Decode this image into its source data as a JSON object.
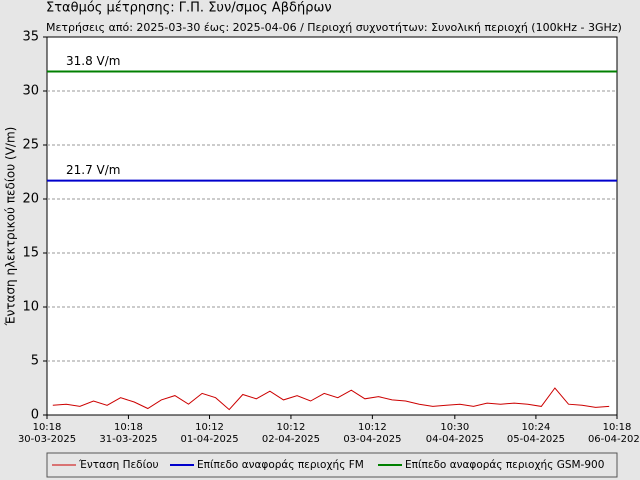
{
  "chart_data": {
    "type": "line",
    "title": "Σταθμός μέτρησης: Γ.Π.  Συν/σμος Αβδήρων",
    "subtitle": "Μετρήσεις από: 2025-03-30 έως: 2025-04-06 / Περιοχή συχνοτήτων: Συνολική περιοχή (100kHz - 3GHz)",
    "y_label": "Ένταση ηλεκτρικού πεδίου (V/m)",
    "xlim": [
      "2025-03-30 10:18",
      "2025-04-06 10:18"
    ],
    "xticks": [
      {
        "time": "10:18",
        "date": "30-03-2025"
      },
      {
        "time": "10:18",
        "date": "31-03-2025"
      },
      {
        "time": "10:12",
        "date": "01-04-2025"
      },
      {
        "time": "10:12",
        "date": "02-04-2025"
      },
      {
        "time": "10:12",
        "date": "03-04-2025"
      },
      {
        "time": "10:30",
        "date": "04-04-2025"
      },
      {
        "time": "10:24",
        "date": "05-04-2025"
      },
      {
        "time": "10:18",
        "date": "06-04-2025"
      }
    ],
    "ylim": [
      0,
      35
    ],
    "yticks": [
      0,
      5,
      10,
      15,
      20,
      25,
      30,
      35
    ],
    "grid": true,
    "series": [
      {
        "name": "Ένταση Πεδίου",
        "color": "#cc0000",
        "x": [
          "2025-03-30 12:00",
          "2025-03-30 16:00",
          "2025-03-30 20:00",
          "2025-03-31 00:00",
          "2025-03-31 04:00",
          "2025-03-31 08:00",
          "2025-03-31 12:00",
          "2025-03-31 16:00",
          "2025-03-31 20:00",
          "2025-04-01 00:00",
          "2025-04-01 04:00",
          "2025-04-01 08:00",
          "2025-04-01 12:00",
          "2025-04-01 16:00",
          "2025-04-01 20:00",
          "2025-04-02 00:00",
          "2025-04-02 04:00",
          "2025-04-02 08:00",
          "2025-04-02 12:00",
          "2025-04-02 16:00",
          "2025-04-02 20:00",
          "2025-04-03 00:00",
          "2025-04-03 04:00",
          "2025-04-03 08:00",
          "2025-04-03 12:00",
          "2025-04-03 16:00",
          "2025-04-03 20:00",
          "2025-04-04 00:00",
          "2025-04-04 04:00",
          "2025-04-04 08:00",
          "2025-04-04 12:00",
          "2025-04-04 16:00",
          "2025-04-04 20:00",
          "2025-04-05 00:00",
          "2025-04-05 04:00",
          "2025-04-05 08:00",
          "2025-04-05 12:00",
          "2025-04-05 16:00",
          "2025-04-05 20:00",
          "2025-04-06 00:00",
          "2025-04-06 04:00",
          "2025-04-06 08:00"
        ],
        "values": [
          0.9,
          1.0,
          0.8,
          1.3,
          0.9,
          1.6,
          1.2,
          0.6,
          1.4,
          1.8,
          1.0,
          2.0,
          1.6,
          0.5,
          1.9,
          1.5,
          2.2,
          1.4,
          1.8,
          1.3,
          2.0,
          1.6,
          2.3,
          1.5,
          1.7,
          1.4,
          1.3,
          1.0,
          0.8,
          0.9,
          1.0,
          0.8,
          1.1,
          1.0,
          1.1,
          1.0,
          0.8,
          2.5,
          1.0,
          0.9,
          0.7,
          0.8
        ]
      },
      {
        "name": "Επίπεδο αναφοράς περιοχής FM",
        "color": "#0000cc",
        "value": 21.7,
        "value_label": "21.7 V/m"
      },
      {
        "name": "Επίπεδο αναφοράς περιοχής GSM-900",
        "color": "#008000",
        "value": 31.8,
        "value_label": "31.8 V/m"
      }
    ]
  }
}
